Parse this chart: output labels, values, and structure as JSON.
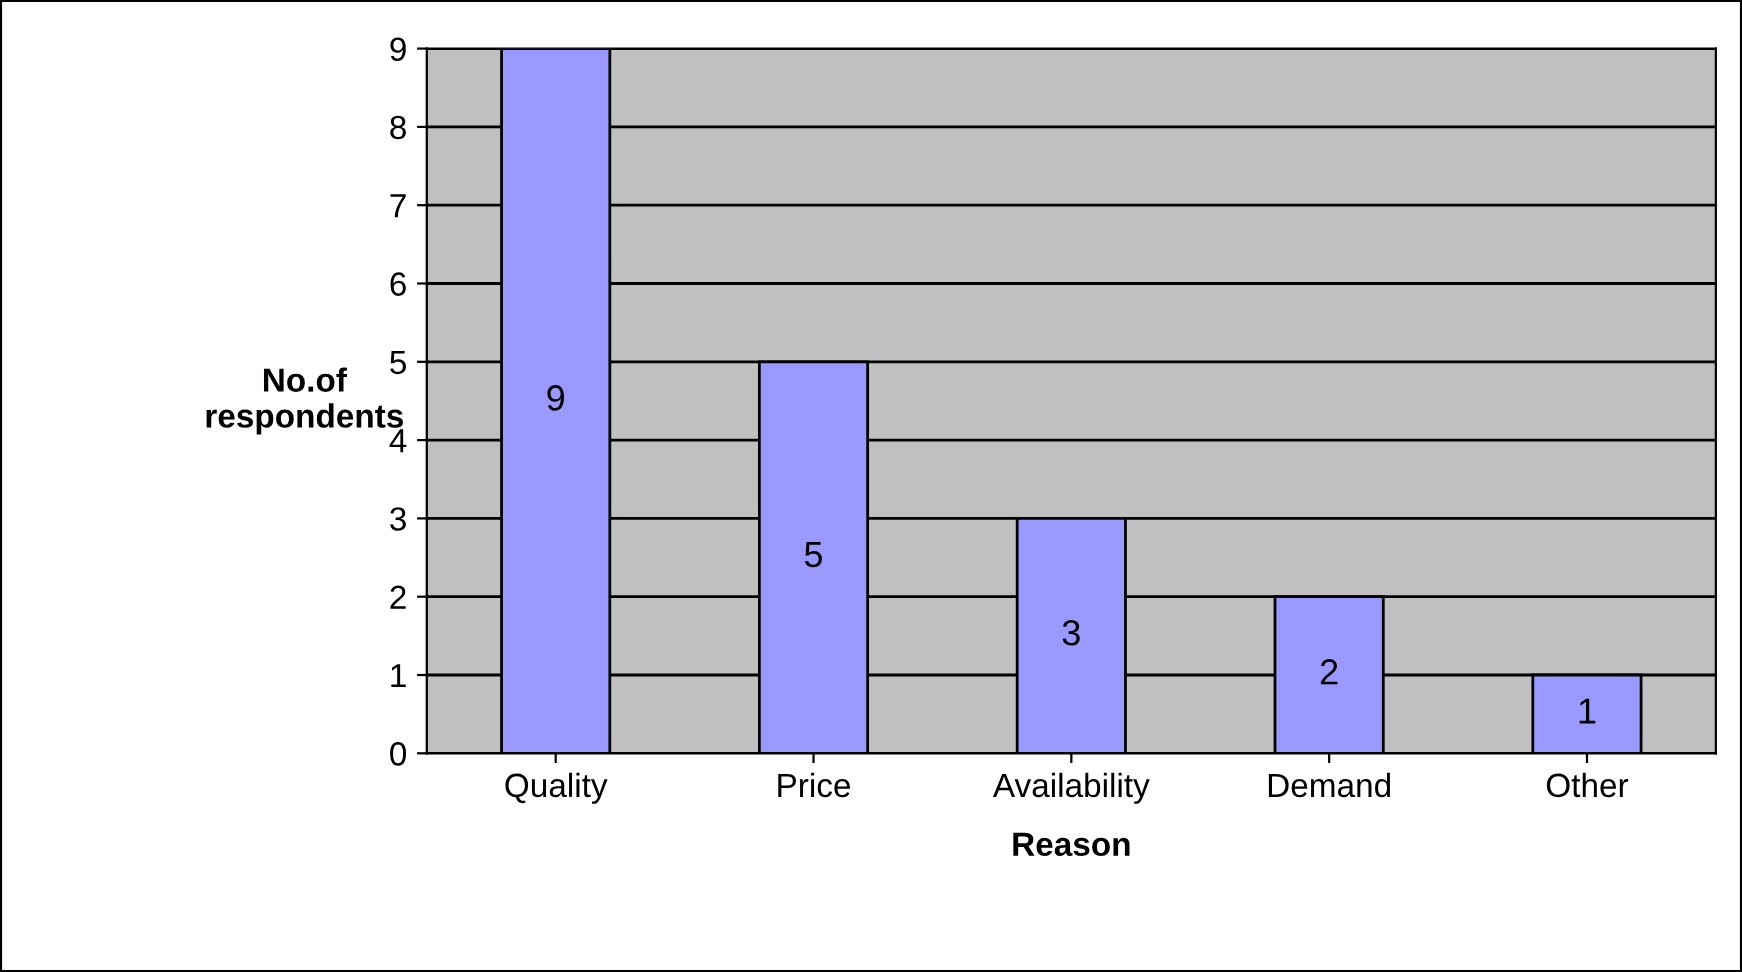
{
  "chart_data": {
    "type": "bar",
    "xlabel": "Reason",
    "ylabel": "No.of\nrespondents",
    "categories": [
      "Quality",
      "Price",
      "Availability",
      "Demand",
      "Other"
    ],
    "values": [
      9,
      5,
      3,
      2,
      1
    ],
    "color": "#9999ff",
    "ylim": [
      0,
      9
    ],
    "yticks": [
      0,
      1,
      2,
      3,
      4,
      5,
      6,
      7,
      8,
      9
    ],
    "grid": "y",
    "data_labels": true
  }
}
